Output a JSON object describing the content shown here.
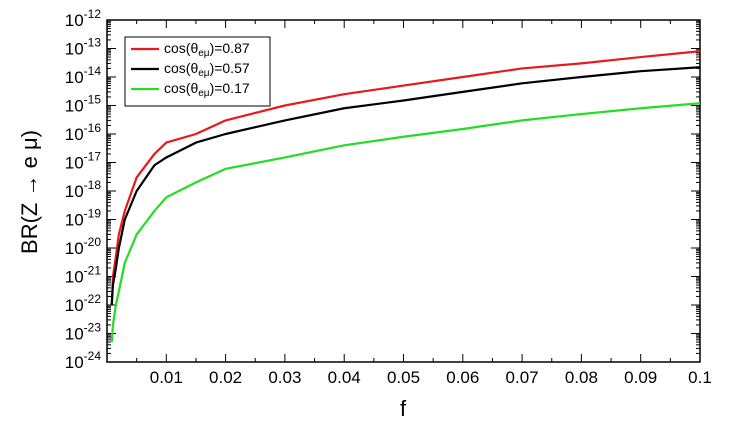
{
  "chart_data": {
    "type": "line",
    "xlabel": "f",
    "ylabel": "BR(Z → e μ)",
    "xlim": [
      0.0,
      0.1
    ],
    "ylim_exponent": [
      -24,
      -12
    ],
    "y_scale": "log",
    "x_ticks": [
      "0.01",
      "0.02",
      "0.03",
      "0.04",
      "0.05",
      "0.06",
      "0.07",
      "0.08",
      "0.09",
      "0.1"
    ],
    "x_tick_values": [
      0.01,
      0.02,
      0.03,
      0.04,
      0.05,
      0.06,
      0.07,
      0.08,
      0.09,
      0.1
    ],
    "y_tick_exponents": [
      -24,
      -23,
      -22,
      -21,
      -20,
      -19,
      -18,
      -17,
      -16,
      -15,
      -14,
      -13,
      -12
    ],
    "y_tick_base": "10",
    "grid": false,
    "legend_position": "top-left",
    "series": [
      {
        "name_prefix": "cos(θ",
        "name_sub": "eμ",
        "name_suffix": ")=0.87",
        "color": "#e8191d",
        "x": [
          0.0008,
          0.001,
          0.0015,
          0.002,
          0.003,
          0.005,
          0.008,
          0.01,
          0.015,
          0.02,
          0.03,
          0.04,
          0.05,
          0.06,
          0.07,
          0.08,
          0.09,
          0.1
        ],
        "y": [
          1e-22,
          1e-21,
          5e-21,
          3e-20,
          2e-19,
          3e-18,
          2e-17,
          5e-17,
          1e-16,
          3e-16,
          1e-15,
          2.5e-15,
          5e-15,
          1e-14,
          2e-14,
          3e-14,
          5e-14,
          8e-14
        ]
      },
      {
        "name_prefix": "cos(θ",
        "name_sub": "eμ",
        "name_suffix": ")=0.57",
        "color": "#000000",
        "x": [
          0.0008,
          0.001,
          0.0015,
          0.002,
          0.003,
          0.005,
          0.008,
          0.01,
          0.015,
          0.02,
          0.03,
          0.04,
          0.05,
          0.06,
          0.07,
          0.08,
          0.09,
          0.1
        ],
        "y": [
          1e-22,
          5e-22,
          2e-21,
          1e-20,
          1e-19,
          1e-18,
          8e-18,
          1.5e-17,
          5e-17,
          1e-16,
          3e-16,
          8e-16,
          1.5e-15,
          3e-15,
          6e-15,
          1e-14,
          1.6e-14,
          2.2e-14
        ]
      },
      {
        "name_prefix": "cos(θ",
        "name_sub": "eμ",
        "name_suffix": ")=0.17",
        "color": "#22dd22",
        "x": [
          0.0008,
          0.001,
          0.0015,
          0.002,
          0.003,
          0.005,
          0.008,
          0.01,
          0.015,
          0.02,
          0.03,
          0.04,
          0.05,
          0.06,
          0.07,
          0.08,
          0.09,
          0.1
        ],
        "y": [
          5e-24,
          2e-23,
          1e-22,
          3e-22,
          3e-21,
          3e-20,
          2e-19,
          6e-19,
          2e-18,
          6e-18,
          1.5e-17,
          4e-17,
          8e-17,
          1.5e-16,
          3e-16,
          5e-16,
          8e-16,
          1.2e-15
        ]
      }
    ]
  }
}
